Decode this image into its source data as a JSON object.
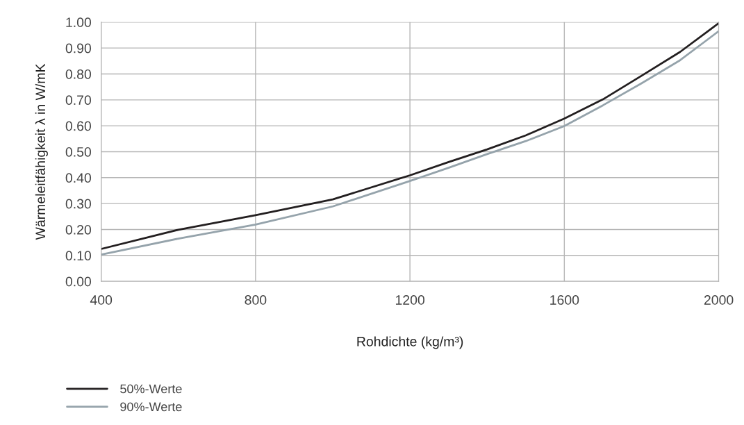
{
  "chart_data": {
    "type": "line",
    "xlabel": "Rohdichte (kg/m³)",
    "ylabel": "Wärmeleitfähigkeit λ in W/mK",
    "x": [
      400,
      600,
      800,
      1000,
      1200,
      1300,
      1400,
      1500,
      1600,
      1700,
      1800,
      1900,
      2000
    ],
    "series": [
      {
        "name": "50%-Werte",
        "color": "#231f20",
        "values": [
          0.125,
          0.199,
          0.255,
          0.316,
          0.409,
          0.46,
          0.509,
          0.563,
          0.628,
          0.702,
          0.793,
          0.885,
          0.996
        ]
      },
      {
        "name": "90%-Werte",
        "color": "#95a3ab",
        "values": [
          0.103,
          0.165,
          0.219,
          0.289,
          0.387,
          0.438,
          0.491,
          0.541,
          0.599,
          0.679,
          0.764,
          0.853,
          0.965
        ]
      }
    ],
    "xlim": [
      400,
      2000
    ],
    "ylim": [
      0,
      1
    ],
    "xticks": [
      400,
      800,
      1200,
      1600,
      2000
    ],
    "yticks": [
      {
        "value": 0,
        "label": "0.00"
      },
      {
        "value": 0.1,
        "label": "0.10"
      },
      {
        "value": 0.2,
        "label": "0.20"
      },
      {
        "value": 0.3,
        "label": "0.30"
      },
      {
        "value": 0.4,
        "label": "0.40"
      },
      {
        "value": 0.5,
        "label": "0.50"
      },
      {
        "value": 0.6,
        "label": "0.60"
      },
      {
        "value": 0.7,
        "label": "0.70"
      },
      {
        "value": 0.8,
        "label": "0.80"
      },
      {
        "value": 0.9,
        "label": "0.90"
      },
      {
        "value": 1,
        "label": "1.00"
      }
    ],
    "grid": true,
    "legend": "bottom left",
    "marker": "none",
    "line_style": "solid"
  }
}
